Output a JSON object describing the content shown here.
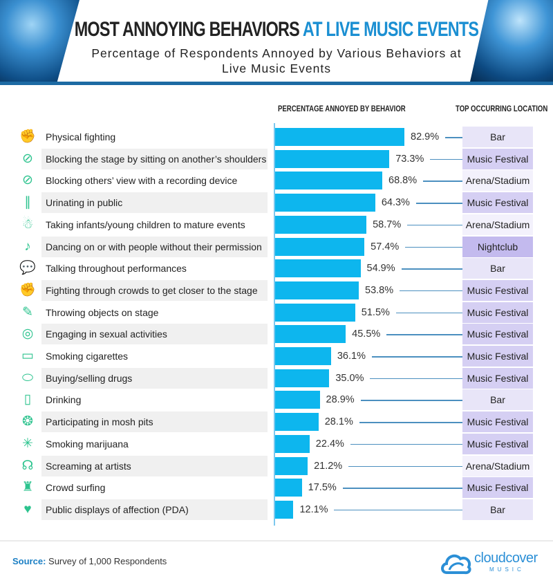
{
  "header": {
    "title_main": "MOST ANNOYING BEHAVIORS",
    "title_accent": "AT LIVE MUSIC EVENTS",
    "subtitle": "Percentage of Respondents Annoyed by Various Behaviors at Live Music Events"
  },
  "columns": {
    "percentage": "PERCENTAGE ANNOYED BY BEHAVIOR",
    "location": "TOP OCCURRING LOCATION"
  },
  "colors": {
    "bar": "#0db6ee",
    "icon": "#2cc38e",
    "accent": "#1b8fd2",
    "locations": {
      "Bar": "#e8e5f8",
      "Music Festival": "#d5cff3",
      "Arena/Stadium": "#f3f1fc",
      "Nightclub": "#c3baee"
    }
  },
  "chart_data": {
    "type": "bar",
    "orientation": "horizontal",
    "title": "MOST ANNOYING BEHAVIORS AT LIVE MUSIC EVENTS",
    "subtitle": "Percentage of Respondents Annoyed by Various Behaviors at Live Music Events",
    "xlabel": "PERCENTAGE ANNOYED BY BEHAVIOR",
    "xlim": [
      0,
      100
    ],
    "grid": false,
    "categories": [
      "Physical fighting",
      "Blocking the stage by sitting on another’s shoulders",
      "Blocking others’ view with a recording device",
      "Urinating in public",
      "Taking infants/young children to mature events",
      "Dancing on or with people without their permission",
      "Talking throughout performances",
      "Fighting through crowds to get closer to the stage",
      "Throwing objects on stage",
      "Engaging in sexual activities",
      "Smoking cigarettes",
      "Buying/selling drugs",
      "Drinking",
      "Participating in mosh pits",
      "Smoking marijuana",
      "Screaming at artists",
      "Crowd surfing",
      "Public displays of affection (PDA)"
    ],
    "values": [
      82.9,
      73.3,
      68.8,
      64.3,
      58.7,
      57.4,
      54.9,
      53.8,
      51.5,
      45.5,
      36.1,
      35.0,
      28.9,
      28.1,
      22.4,
      21.2,
      17.5,
      12.1
    ],
    "value_labels": [
      "82.9%",
      "73.3%",
      "68.8%",
      "64.3%",
      "58.7%",
      "57.4%",
      "54.9%",
      "53.8%",
      "51.5%",
      "45.5%",
      "36.1%",
      "35.0%",
      "28.9%",
      "28.1%",
      "22.4%",
      "21.2%",
      "17.5%",
      "12.1%"
    ],
    "locations": [
      "Bar",
      "Music Festival",
      "Arena/Stadium",
      "Music Festival",
      "Arena/Stadium",
      "Nightclub",
      "Bar",
      "Music Festival",
      "Music Festival",
      "Music Festival",
      "Music Festival",
      "Music Festival",
      "Bar",
      "Music Festival",
      "Music Festival",
      "Arena/Stadium",
      "Music Festival",
      "Bar"
    ],
    "icons": [
      "fist-icon",
      "crossed-eye-icon",
      "crossed-eye-icon",
      "urinal-icon",
      "child-icon",
      "dancer-icon",
      "speech-bubbles-icon",
      "fist-icon",
      "throw-icon",
      "condom-icon",
      "cigarette-icon",
      "pills-icon",
      "bottle-icon",
      "mosh-pit-icon",
      "cannabis-leaf-icon",
      "screaming-person-icon",
      "crowd-surfing-icon",
      "couple-icon"
    ]
  },
  "footer": {
    "source_label": "Source:",
    "source_text": "Survey of 1,000 Respondents",
    "logo_text": "cloudcover",
    "logo_sub": "MUSIC"
  }
}
